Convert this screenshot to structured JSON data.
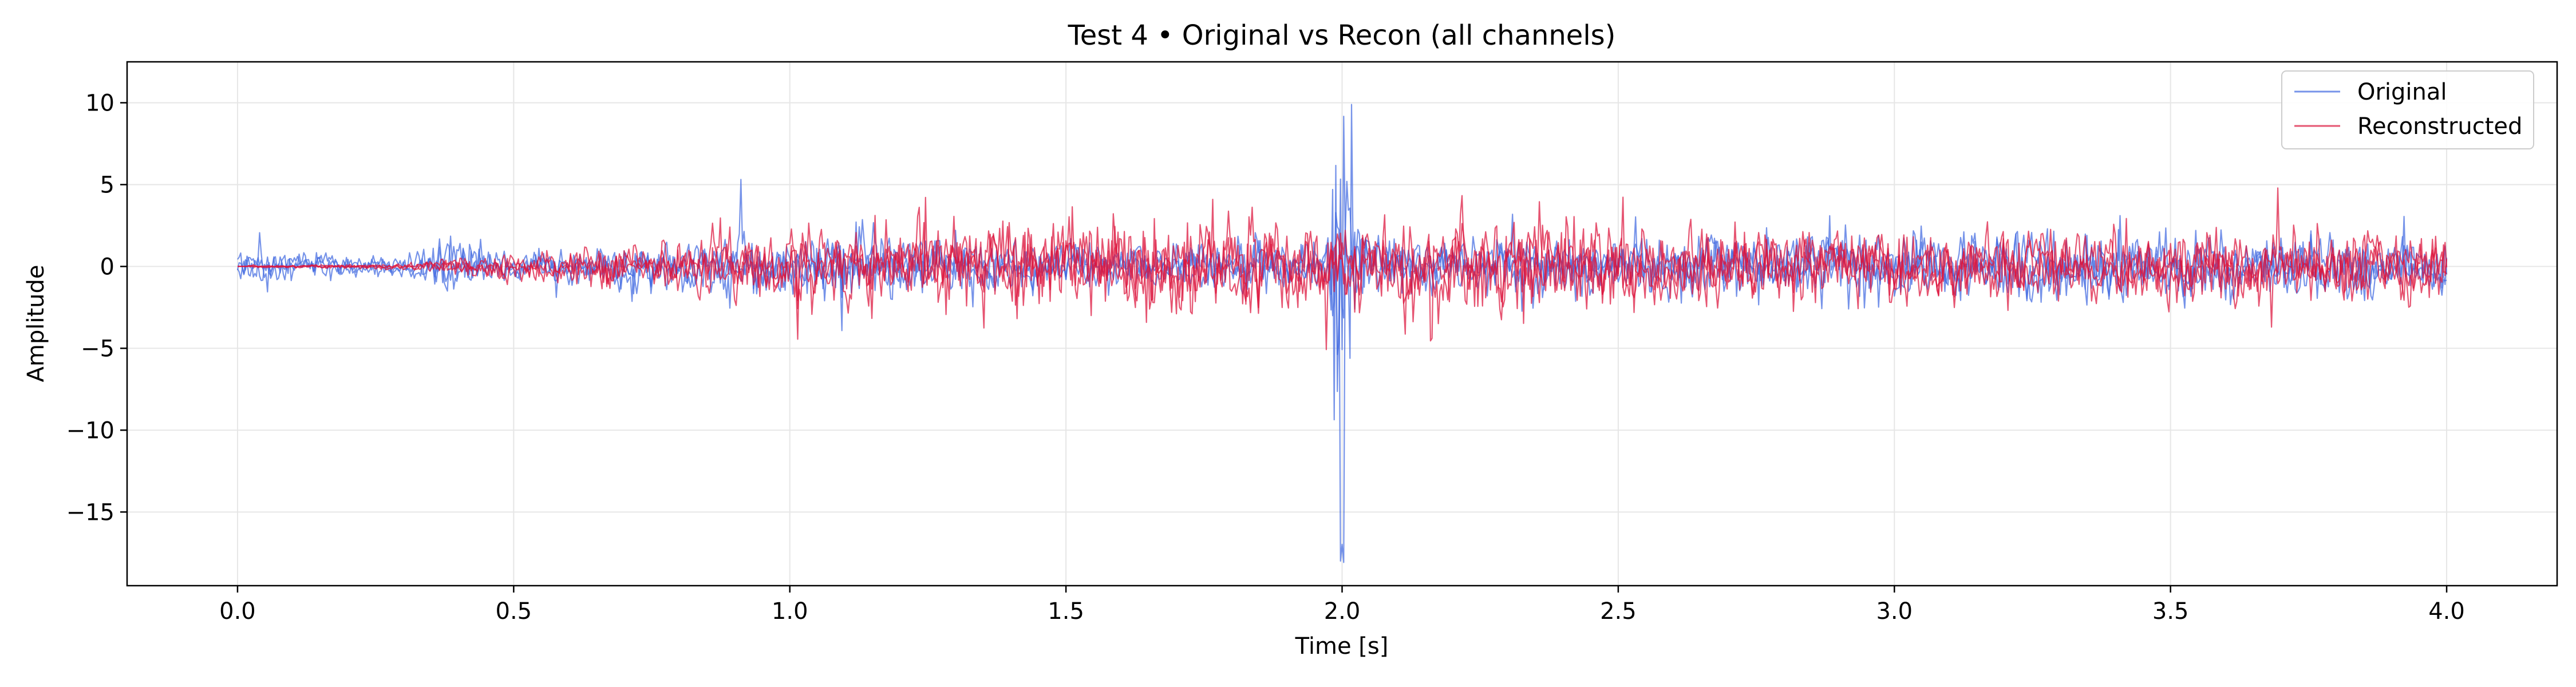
{
  "chart_data": {
    "type": "line",
    "title": "Test 4 • Original vs Recon (all channels)",
    "xlabel": "Time [s]",
    "ylabel": "Amplitude",
    "xlim": [
      -0.2,
      4.2
    ],
    "ylim": [
      -19.5,
      12.5
    ],
    "grid": true,
    "legend_position": "top-right",
    "xticks": [
      {
        "value": 0.0,
        "label": "0.0"
      },
      {
        "value": 0.5,
        "label": "0.5"
      },
      {
        "value": 1.0,
        "label": "1.0"
      },
      {
        "value": 1.5,
        "label": "1.5"
      },
      {
        "value": 2.0,
        "label": "2.0"
      },
      {
        "value": 2.5,
        "label": "2.5"
      },
      {
        "value": 3.0,
        "label": "3.0"
      },
      {
        "value": 3.5,
        "label": "3.5"
      },
      {
        "value": 4.0,
        "label": "4.0"
      }
    ],
    "yticks": [
      {
        "value": 10,
        "label": "10"
      },
      {
        "value": 5,
        "label": "5"
      },
      {
        "value": 0,
        "label": "0"
      },
      {
        "value": -5,
        "label": "−5"
      },
      {
        "value": -10,
        "label": "−10"
      },
      {
        "value": -15,
        "label": "−15"
      }
    ],
    "series": [
      {
        "name": "Original",
        "color": "#4169e1",
        "channels": 3,
        "x_range": [
          0.0,
          4.0
        ],
        "envelope": [
          {
            "t": 0.0,
            "amp": 1.8
          },
          {
            "t": 0.3,
            "amp": 1.0
          },
          {
            "t": 0.4,
            "amp": 3.0
          },
          {
            "t": 0.5,
            "amp": 1.2
          },
          {
            "t": 1.1,
            "amp": 3.5
          },
          {
            "t": 1.5,
            "amp": 2.0
          },
          {
            "t": 1.97,
            "amp": 2.5
          },
          {
            "t": 2.0,
            "amp": 11.0
          },
          {
            "t": 2.0,
            "amp_min": -18.2
          },
          {
            "t": 2.05,
            "amp": 2.5
          },
          {
            "t": 3.3,
            "amp": 3.5
          },
          {
            "t": 4.0,
            "amp": 2.8
          }
        ]
      },
      {
        "name": "Reconstructed",
        "color": "#dc143c",
        "channels": 3,
        "x_range": [
          0.0,
          4.0
        ],
        "envelope": [
          {
            "t": 0.0,
            "amp": 0.1
          },
          {
            "t": 0.3,
            "amp": 0.3
          },
          {
            "t": 0.5,
            "amp": 1.5
          },
          {
            "t": 1.0,
            "amp": 3.5
          },
          {
            "t": 1.6,
            "amp": 5.0
          },
          {
            "t": 2.0,
            "amp": 4.0
          },
          {
            "t": 2.25,
            "amp": 4.8
          },
          {
            "t": 3.0,
            "amp": 3.5
          },
          {
            "t": 4.0,
            "amp": 3.5
          }
        ]
      }
    ]
  }
}
